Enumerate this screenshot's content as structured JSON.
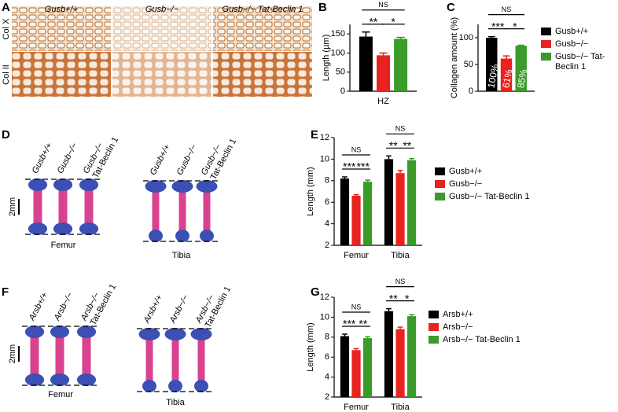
{
  "panels": {
    "A": {
      "letter": "A",
      "columns": [
        "Gusb+/+",
        "Gusb−/−",
        "Gusb−/− Tat-Beclin 1"
      ],
      "rows": [
        "Col X",
        "Col II"
      ]
    },
    "D": {
      "letter": "D",
      "labels": [
        [
          "Gusb+/+"
        ],
        [
          "Gusb−/−"
        ],
        [
          "Gusb−/−",
          "Tat-Beclin 1"
        ]
      ],
      "scale": "2mm",
      "groups": [
        "Femur",
        "Tibia"
      ]
    },
    "F": {
      "letter": "F",
      "labels": [
        [
          "Arsb+/+"
        ],
        [
          "Arsb−/−"
        ],
        [
          "Arsb−/−",
          "Tat-Beclin 1"
        ]
      ],
      "scale": "2mm",
      "groups": [
        "Femur",
        "Tibia"
      ]
    }
  },
  "chart_data": [
    {
      "type": "bar",
      "panel": "B",
      "ylabel": "Length (µm)",
      "categories": [
        "HZ"
      ],
      "ylim": [
        0,
        175
      ],
      "yticks": [
        0,
        50,
        100,
        150
      ],
      "series": [
        {
          "color": "#000000",
          "values": [
            143
          ],
          "errors": [
            12
          ]
        },
        {
          "color": "#e8231f",
          "values": [
            94
          ],
          "errors": [
            6
          ]
        },
        {
          "color": "#3a9a2a",
          "values": [
            137
          ],
          "errors": [
            4
          ]
        }
      ],
      "annotations": [
        "NS",
        "**",
        "*"
      ]
    },
    {
      "type": "bar",
      "panel": "C",
      "ylabel": "Collagen amount (%)",
      "categories": [
        null
      ],
      "ylim": [
        0,
        125
      ],
      "yticks": [
        0,
        50,
        100
      ],
      "series": [
        {
          "name": "Gusb+/+",
          "color": "#000000",
          "values": [
            100
          ],
          "errors": [
            2
          ],
          "value_labels": [
            "100%"
          ]
        },
        {
          "name": "Gusb−/−",
          "color": "#e8231f",
          "values": [
            61
          ],
          "errors": [
            5
          ],
          "value_labels": [
            "61%"
          ]
        },
        {
          "name": "Gusb−/− Tat-Beclin 1",
          "color": "#3a9a2a",
          "values": [
            85
          ],
          "errors": [
            1
          ],
          "value_labels": [
            "85%"
          ]
        }
      ],
      "annotations": [
        "NS",
        "***",
        "*"
      ]
    },
    {
      "type": "bar",
      "panel": "E",
      "ylabel": "Length (mm)",
      "categories": [
        "Femur",
        "Tibia"
      ],
      "ylim": [
        2,
        12
      ],
      "yticks": [
        2,
        4,
        6,
        8,
        10,
        12
      ],
      "series": [
        {
          "name": "Gusb+/+",
          "color": "#000000",
          "values": [
            8.2,
            10.0
          ],
          "errors": [
            0.15,
            0.3
          ]
        },
        {
          "name": "Gusb−/−",
          "color": "#e8231f",
          "values": [
            6.6,
            8.7
          ],
          "errors": [
            0.1,
            0.25
          ]
        },
        {
          "name": "Gusb−/− Tat-Beclin 1",
          "color": "#3a9a2a",
          "values": [
            7.9,
            9.9
          ],
          "errors": [
            0.15,
            0.15
          ]
        }
      ],
      "annotations": [
        [
          "NS",
          "***",
          "***"
        ],
        [
          "NS",
          "**",
          "**"
        ]
      ]
    },
    {
      "type": "bar",
      "panel": "G",
      "ylabel": "Length (mm)",
      "categories": [
        "Femur",
        "Tibia"
      ],
      "ylim": [
        2,
        12
      ],
      "yticks": [
        2,
        4,
        6,
        8,
        10,
        12
      ],
      "series": [
        {
          "name": "Arsb+/+",
          "color": "#000000",
          "values": [
            8.1,
            10.6
          ],
          "errors": [
            0.2,
            0.25
          ]
        },
        {
          "name": "Arsb−/−",
          "color": "#e8231f",
          "values": [
            6.7,
            8.8
          ],
          "errors": [
            0.15,
            0.2
          ]
        },
        {
          "name": "Arsb−/− Tat-Beclin 1",
          "color": "#3a9a2a",
          "values": [
            7.9,
            10.1
          ],
          "errors": [
            0.15,
            0.15
          ]
        }
      ],
      "annotations": [
        [
          "NS",
          "***",
          "**"
        ],
        [
          "NS",
          "**",
          "*"
        ]
      ]
    }
  ]
}
